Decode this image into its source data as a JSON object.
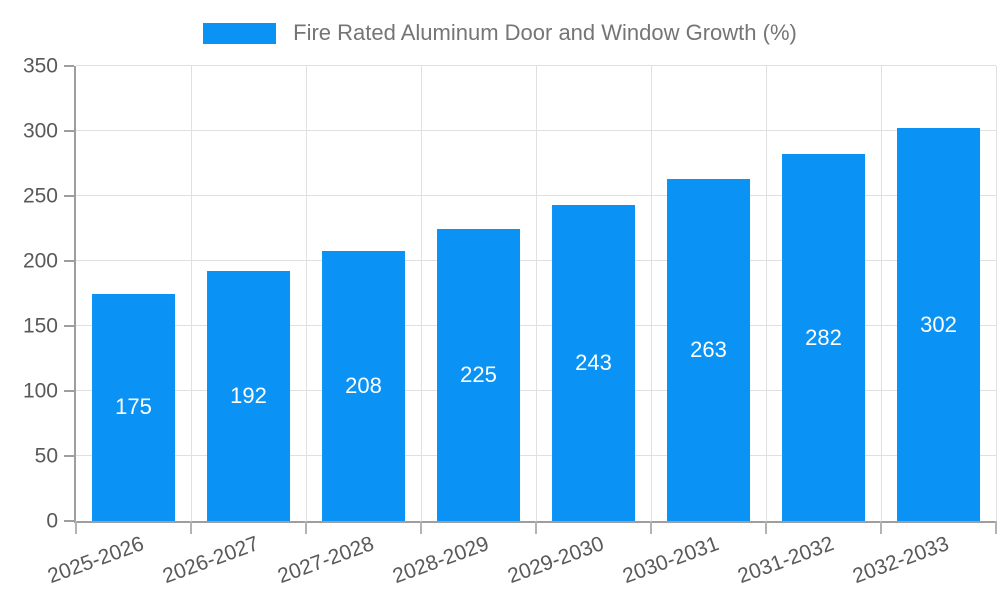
{
  "legend": {
    "label": "Fire Rated Aluminum Door and Window Growth (%)"
  },
  "colors": {
    "bar": "#0a92f5",
    "axis": "#9e9e9e",
    "grid": "#e0e0e0",
    "tick_label": "#595959",
    "legend_text": "#757575",
    "value_label": "#ffffff",
    "background": "#ffffff"
  },
  "chart_data": {
    "type": "bar",
    "title": "Fire Rated Aluminum Door and Window Growth (%)",
    "categories": [
      "2025-2026",
      "2026-2027",
      "2027-2028",
      "2028-2029",
      "2029-2030",
      "2030-2031",
      "2031-2032",
      "2032-2033"
    ],
    "values": [
      175,
      192,
      208,
      225,
      243,
      263,
      282,
      302
    ],
    "xlabel": "",
    "ylabel": "",
    "ylim": [
      0,
      350
    ],
    "ytick_step": 50,
    "yticks": [
      0,
      50,
      100,
      150,
      200,
      250,
      300,
      350
    ],
    "grid": true,
    "legend_position": "top-center",
    "bar_width_fraction": 0.73,
    "x_label_rotation_deg": -20,
    "value_labels": "inside-center"
  }
}
